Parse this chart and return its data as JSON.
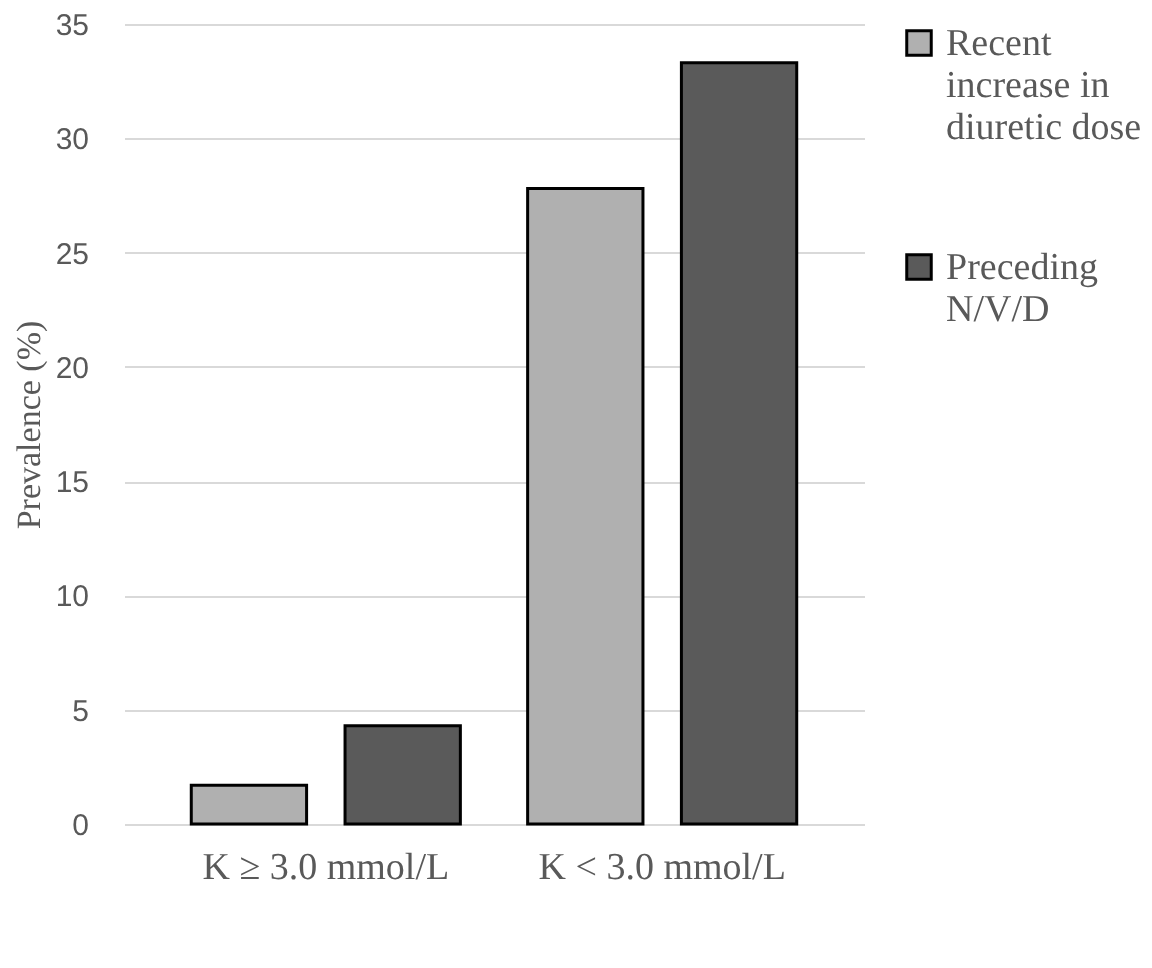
{
  "chart_data": {
    "type": "bar",
    "ylabel": "Prevalence (%)",
    "categories": [
      "K ≥ 3.0 mmol/L",
      "K < 3.0 mmol/L"
    ],
    "series": [
      {
        "name": "Recent increase in diuretic dose",
        "color": "#b0b0b0",
        "values": [
          1.7,
          27.8
        ]
      },
      {
        "name": "Preceding N/V/D",
        "color": "#5a5a5a",
        "values": [
          4.3,
          33.3
        ]
      }
    ],
    "ylim": [
      0,
      35
    ],
    "yticks": [
      0,
      5,
      10,
      15,
      20,
      25,
      30,
      35
    ],
    "grid": "y",
    "legend": "right"
  }
}
